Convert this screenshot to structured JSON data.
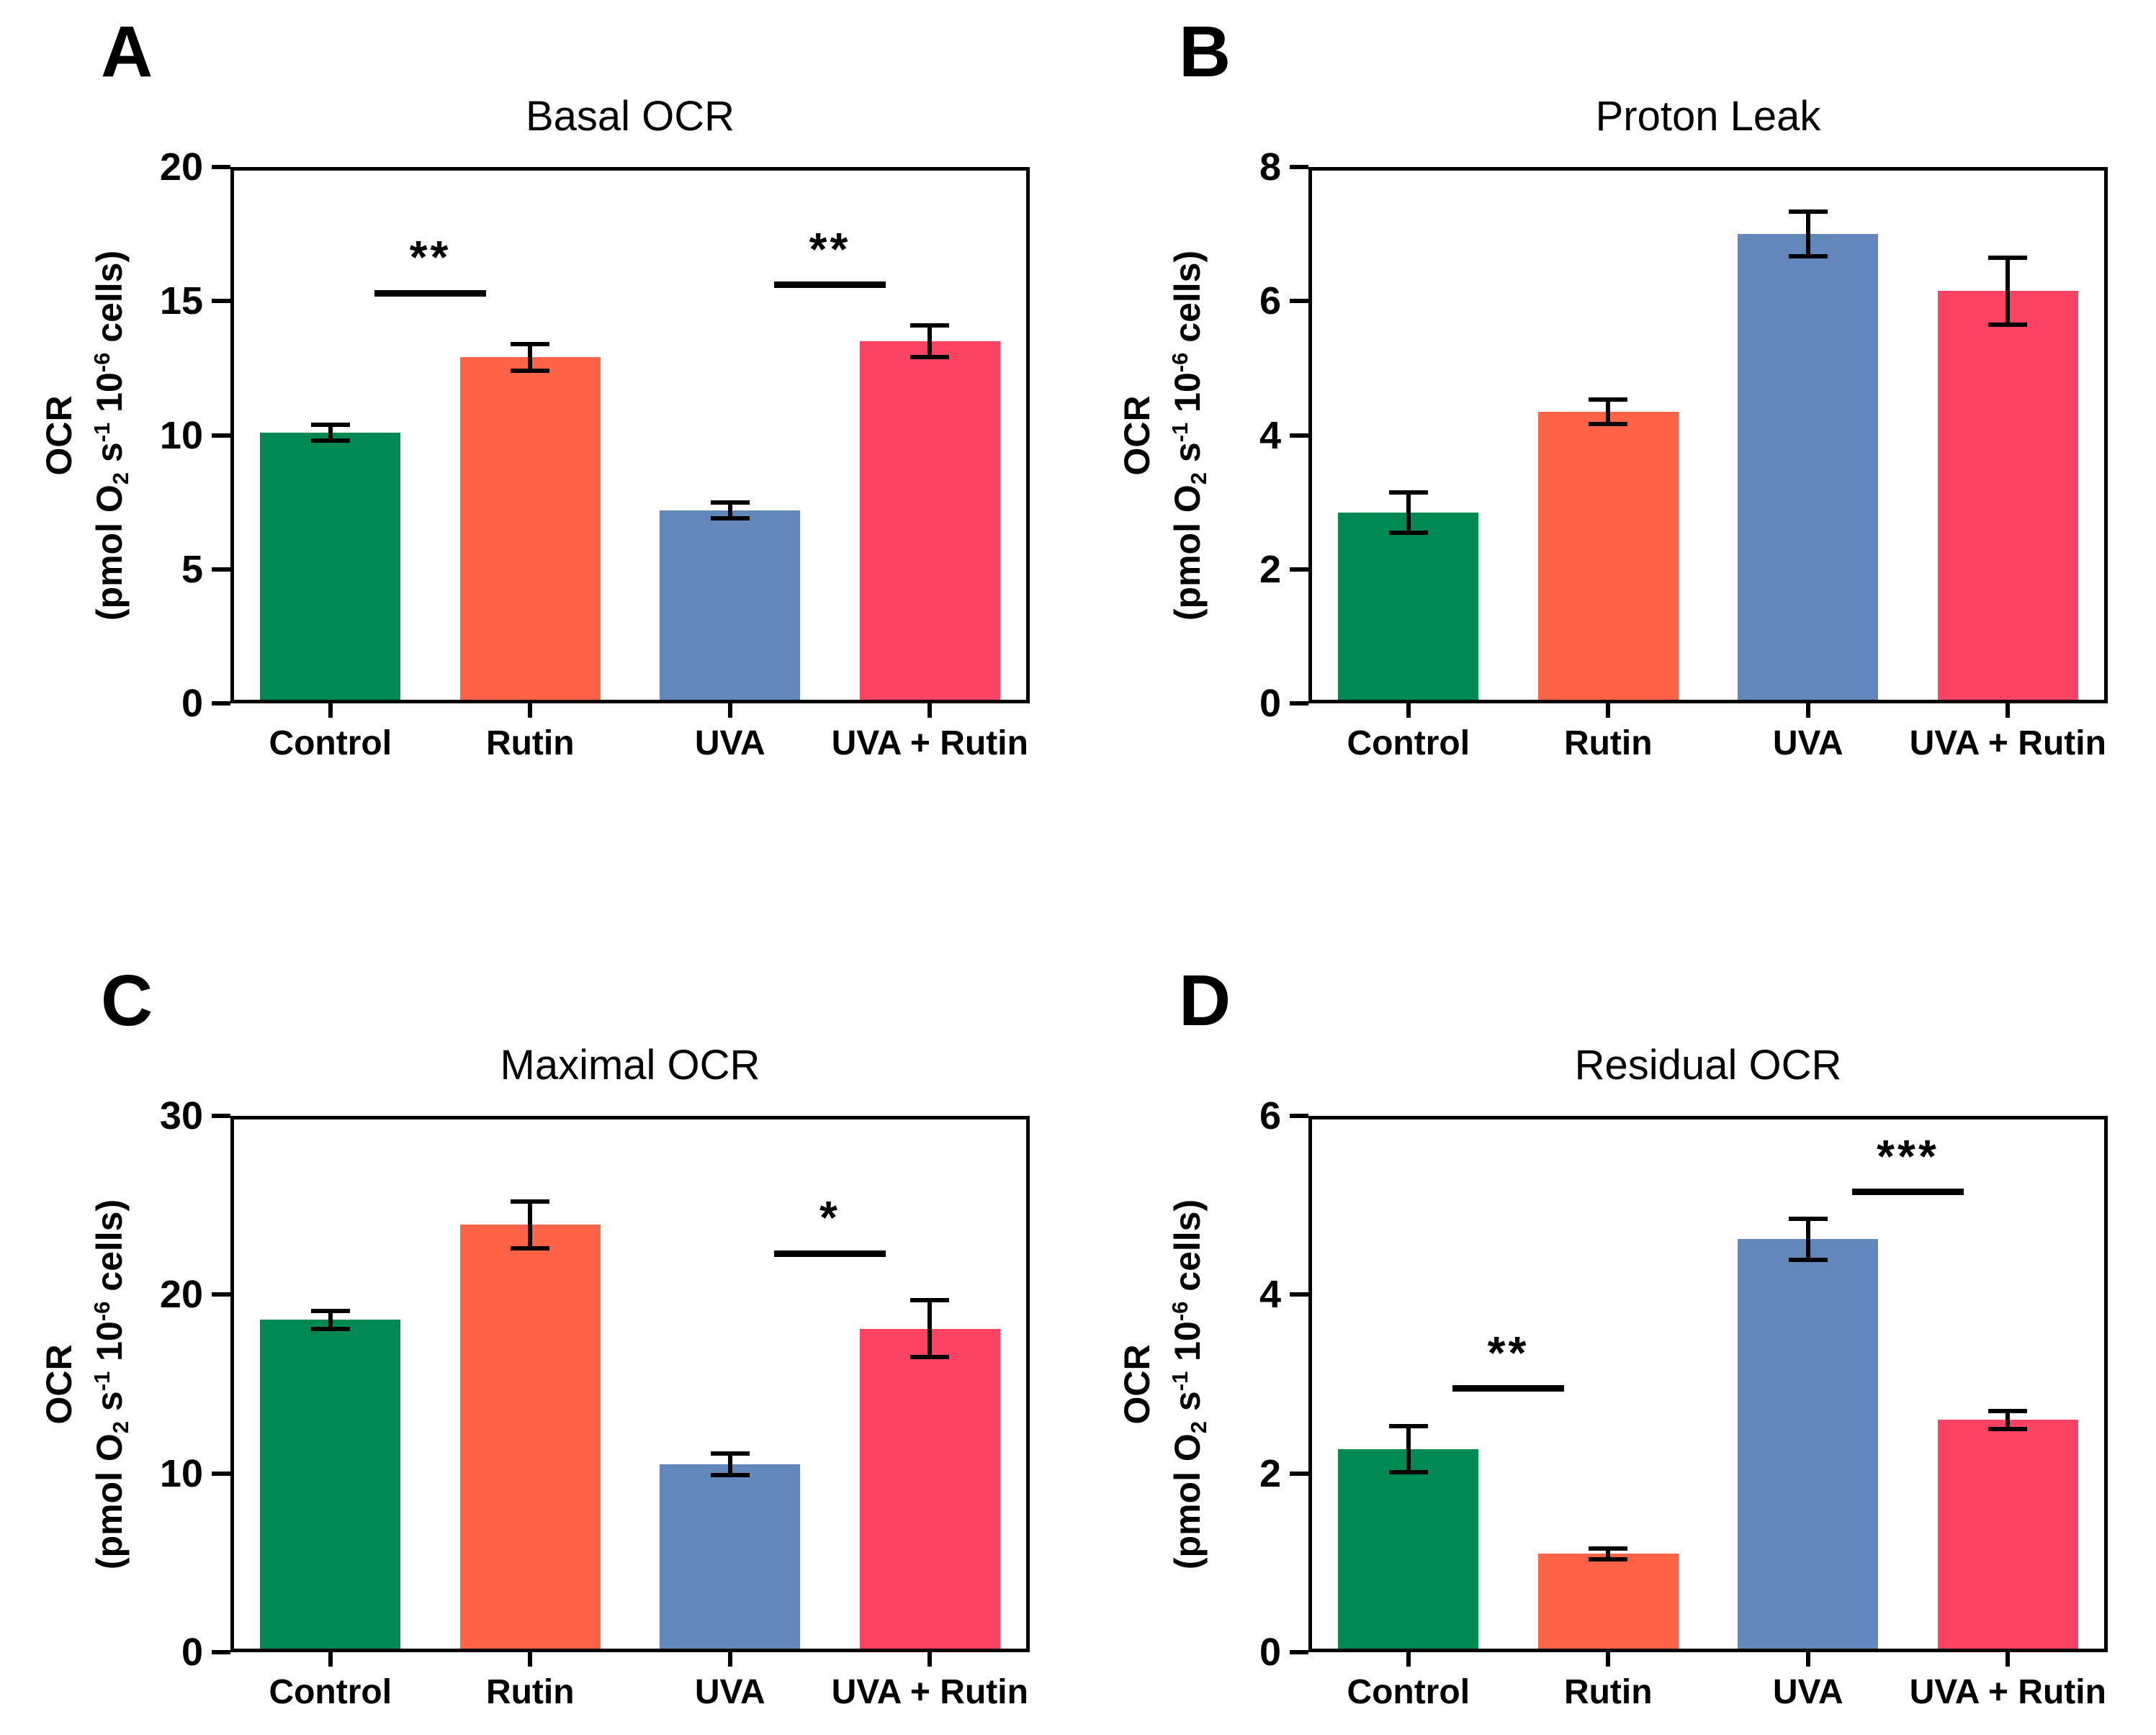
{
  "figure": {
    "background": "#FFFFFF",
    "groups": [
      "Control",
      "Rutin",
      "UVA",
      "UVA + Rutin"
    ],
    "group_colors": {
      "Control": "#008952",
      "Rutin": "#FF6347",
      "UVA": "#6288BB",
      "UVA + Rutin": "#FB4263"
    }
  },
  "chart_data": [
    {
      "panel_letter": "A",
      "type": "bar",
      "title": "Basal OCR",
      "ylabel": "OCR",
      "ylabel_units": "(pmol O2 s-1 10-6 cells)",
      "ylabel_units_parts": [
        {
          "t": "(pmol O"
        },
        {
          "t": "2",
          "style": "sub"
        },
        {
          "t": " s"
        },
        {
          "t": "-1",
          "style": "sup"
        },
        {
          "t": " 10"
        },
        {
          "t": "-6",
          "style": "sup"
        },
        {
          "t": " cells)"
        }
      ],
      "categories": [
        "Control",
        "Rutin",
        "UVA",
        "UVA + Rutin"
      ],
      "values": [
        10.1,
        12.9,
        7.2,
        13.5
      ],
      "errors": [
        0.3,
        0.5,
        0.3,
        0.6
      ],
      "colors": [
        "#008952",
        "#FF6347",
        "#6288BB",
        "#FB4263"
      ],
      "ylim": [
        0,
        20
      ],
      "yticks": [
        0,
        5,
        10,
        15,
        20
      ],
      "grid": false,
      "legend": "none",
      "significance": [
        {
          "between": [
            "Control",
            "Rutin"
          ],
          "from": 0,
          "to": 1,
          "y": 15.3,
          "label": "**"
        },
        {
          "between": [
            "UVA",
            "UVA + Rutin"
          ],
          "from": 2,
          "to": 3,
          "y": 15.6,
          "label": "**"
        }
      ]
    },
    {
      "panel_letter": "B",
      "type": "bar",
      "title": "Proton Leak",
      "ylabel": "OCR",
      "ylabel_units": "(pmol O2 s-1 10-6 cells)",
      "ylabel_units_parts": [
        {
          "t": "(pmol O"
        },
        {
          "t": "2",
          "style": "sub"
        },
        {
          "t": " s"
        },
        {
          "t": "-1",
          "style": "sup"
        },
        {
          "t": " 10"
        },
        {
          "t": "-6",
          "style": "sup"
        },
        {
          "t": " cells)"
        }
      ],
      "categories": [
        "Control",
        "Rutin",
        "UVA",
        "UVA + Rutin"
      ],
      "values": [
        2.85,
        4.35,
        7.0,
        6.15
      ],
      "errors": [
        0.3,
        0.18,
        0.33,
        0.5
      ],
      "colors": [
        "#008952",
        "#FF6347",
        "#6288BB",
        "#FB4263"
      ],
      "ylim": [
        0,
        8
      ],
      "yticks": [
        0,
        2,
        4,
        6,
        8
      ],
      "grid": false,
      "legend": "none",
      "significance": []
    },
    {
      "panel_letter": "C",
      "type": "bar",
      "title": "Maximal OCR",
      "ylabel": "OCR",
      "ylabel_units": "(pmol O2 s-1 10-6 cells)",
      "ylabel_units_parts": [
        {
          "t": "(pmol O"
        },
        {
          "t": "2",
          "style": "sub"
        },
        {
          "t": " s"
        },
        {
          "t": "-1",
          "style": "sup"
        },
        {
          "t": " 10"
        },
        {
          "t": "-6",
          "style": "sup"
        },
        {
          "t": " cells)"
        }
      ],
      "categories": [
        "Control",
        "Rutin",
        "UVA",
        "UVA + Rutin"
      ],
      "values": [
        18.6,
        23.9,
        10.5,
        18.1
      ],
      "errors": [
        0.5,
        1.3,
        0.6,
        1.6
      ],
      "colors": [
        "#008952",
        "#FF6347",
        "#6288BB",
        "#FB4263"
      ],
      "ylim": [
        0,
        30
      ],
      "yticks": [
        0,
        10,
        20,
        30
      ],
      "grid": false,
      "legend": "none",
      "significance": [
        {
          "between": [
            "UVA",
            "UVA + Rutin"
          ],
          "from": 2,
          "to": 3,
          "y": 22.3,
          "label": "*"
        }
      ]
    },
    {
      "panel_letter": "D",
      "type": "bar",
      "title": "Residual OCR",
      "ylabel": "OCR",
      "ylabel_units": "(pmol O2 s-1 10-6 cells)",
      "ylabel_units_parts": [
        {
          "t": "(pmol O"
        },
        {
          "t": "2",
          "style": "sub"
        },
        {
          "t": " s"
        },
        {
          "t": "-1",
          "style": "sup"
        },
        {
          "t": " 10"
        },
        {
          "t": "-6",
          "style": "sup"
        },
        {
          "t": " cells)"
        }
      ],
      "categories": [
        "Control",
        "Rutin",
        "UVA",
        "UVA + Rutin"
      ],
      "values": [
        2.27,
        1.1,
        4.62,
        2.6
      ],
      "errors": [
        0.26,
        0.06,
        0.23,
        0.1
      ],
      "colors": [
        "#008952",
        "#FF6347",
        "#6288BB",
        "#FB4263"
      ],
      "ylim": [
        0,
        6
      ],
      "yticks": [
        0,
        2,
        4,
        6
      ],
      "grid": false,
      "legend": "none",
      "significance": [
        {
          "between": [
            "Control",
            "Rutin"
          ],
          "from": 0,
          "to": 1,
          "y": 2.95,
          "label": "**"
        },
        {
          "between": [
            "UVA",
            "UVA + Rutin"
          ],
          "from": 2,
          "to": 3,
          "y": 5.15,
          "label": "***"
        }
      ]
    }
  ]
}
